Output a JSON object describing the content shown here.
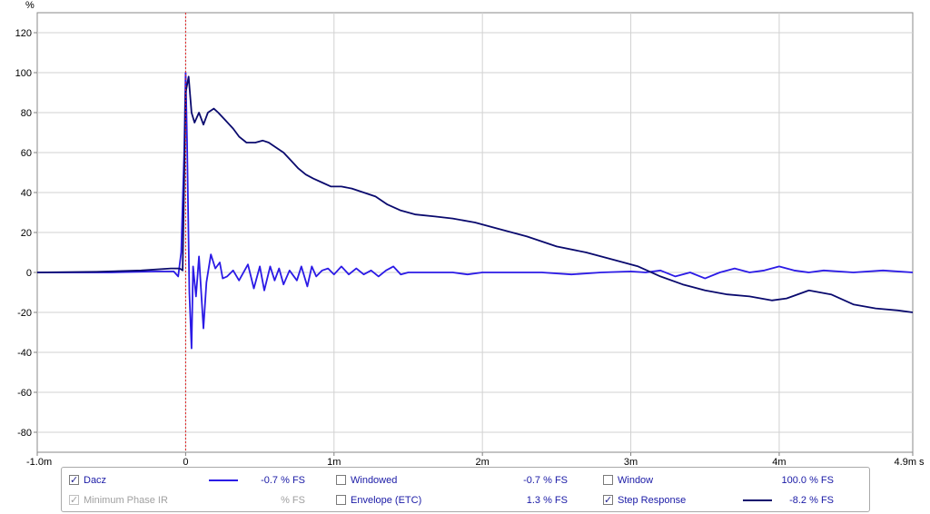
{
  "chart_data": {
    "type": "line",
    "ylabel": "%",
    "xunit": "s",
    "xlim": [
      -1.0,
      4.9
    ],
    "ylim": [
      -90,
      130
    ],
    "grid": true,
    "yticks": [
      120,
      100,
      80,
      60,
      40,
      20,
      0,
      -20,
      -40,
      -60,
      -80
    ],
    "xticks": [
      {
        "value": -1.0,
        "label": "-1.0m"
      },
      {
        "value": 0,
        "label": "0"
      },
      {
        "value": 1,
        "label": "1m"
      },
      {
        "value": 2,
        "label": "2m"
      },
      {
        "value": 3,
        "label": "3m"
      },
      {
        "value": 4,
        "label": "4m"
      },
      {
        "value": 4.9,
        "label": "4.9m"
      }
    ],
    "marker_x": 0,
    "series": [
      {
        "name": "Dacz",
        "color": "#2b1ae6",
        "x": [
          -1.0,
          -0.5,
          -0.2,
          -0.08,
          -0.05,
          -0.03,
          -0.01,
          0.0,
          0.01,
          0.025,
          0.04,
          0.05,
          0.07,
          0.09,
          0.12,
          0.14,
          0.17,
          0.2,
          0.23,
          0.25,
          0.28,
          0.32,
          0.36,
          0.42,
          0.46,
          0.5,
          0.53,
          0.57,
          0.6,
          0.63,
          0.66,
          0.7,
          0.75,
          0.78,
          0.82,
          0.85,
          0.88,
          0.92,
          0.96,
          1.0,
          1.05,
          1.1,
          1.15,
          1.2,
          1.25,
          1.3,
          1.35,
          1.4,
          1.45,
          1.5,
          1.6,
          1.7,
          1.8,
          1.9,
          2.0,
          2.2,
          2.4,
          2.6,
          2.8,
          3.0,
          3.1,
          3.2,
          3.3,
          3.4,
          3.5,
          3.6,
          3.7,
          3.8,
          3.9,
          4.0,
          4.1,
          4.2,
          4.3,
          4.5,
          4.7,
          4.9
        ],
        "y": [
          0,
          0,
          0.5,
          0.5,
          -2,
          10,
          60,
          100,
          65,
          -10,
          -38,
          3,
          -12,
          8,
          -28,
          -5,
          9,
          2,
          5,
          -3,
          -2,
          1,
          -4,
          4,
          -8,
          3,
          -9,
          3,
          -4,
          2,
          -6,
          1,
          -4,
          3,
          -7,
          3,
          -2,
          1,
          2,
          -1,
          3,
          -1,
          2,
          -1,
          1,
          -2,
          1,
          3,
          -1,
          0,
          0,
          0,
          0,
          -1,
          0,
          0,
          0,
          -1,
          0,
          0.5,
          0,
          1,
          -2,
          0,
          -3,
          0,
          2,
          0,
          1,
          3,
          1,
          0,
          1,
          0,
          1,
          0
        ]
      },
      {
        "name": "Step Response",
        "color": "#0a0a6e",
        "x": [
          -1.0,
          -0.6,
          -0.3,
          -0.1,
          -0.04,
          -0.02,
          0.0,
          0.02,
          0.04,
          0.06,
          0.09,
          0.12,
          0.15,
          0.19,
          0.22,
          0.27,
          0.32,
          0.36,
          0.41,
          0.47,
          0.52,
          0.56,
          0.62,
          0.66,
          0.71,
          0.76,
          0.81,
          0.86,
          0.92,
          0.98,
          1.05,
          1.12,
          1.2,
          1.28,
          1.36,
          1.45,
          1.55,
          1.68,
          1.8,
          1.95,
          2.1,
          2.3,
          2.5,
          2.7,
          2.9,
          3.05,
          3.2,
          3.35,
          3.5,
          3.65,
          3.8,
          3.95,
          4.05,
          4.2,
          4.35,
          4.5,
          4.65,
          4.8,
          4.9
        ],
        "y": [
          0,
          0.3,
          1,
          2,
          2,
          1,
          90,
          98,
          80,
          75,
          80,
          74,
          80,
          82,
          80,
          76,
          72,
          68,
          65,
          65,
          66,
          65,
          62,
          60,
          56,
          52,
          49,
          47,
          45,
          43,
          43,
          42,
          40,
          38,
          34,
          31,
          29,
          28,
          27,
          25,
          22,
          18,
          13,
          10,
          6,
          3,
          -2,
          -6,
          -9,
          -11,
          -12,
          -14,
          -13,
          -9,
          -11,
          -16,
          -18,
          -19,
          -20
        ]
      }
    ]
  },
  "legend": {
    "items": [
      {
        "label": "Dacz",
        "checked": true,
        "disabled": false,
        "value": "-0.7 % FS",
        "swatch": "#2b1ae6"
      },
      {
        "label": "Minimum Phase IR",
        "checked": true,
        "disabled": true,
        "value": "% FS",
        "swatch": ""
      },
      {
        "label": "Windowed",
        "checked": false,
        "disabled": false,
        "value": "-0.7 % FS",
        "swatch": ""
      },
      {
        "label": "Envelope (ETC)",
        "checked": false,
        "disabled": false,
        "value": "1.3 % FS",
        "swatch": ""
      },
      {
        "label": "Window",
        "checked": false,
        "disabled": false,
        "value": "100.0 % FS",
        "swatch": ""
      },
      {
        "label": "Step Response",
        "checked": true,
        "disabled": false,
        "value": "-8.2 % FS",
        "swatch": "#0a0a6e"
      }
    ]
  }
}
